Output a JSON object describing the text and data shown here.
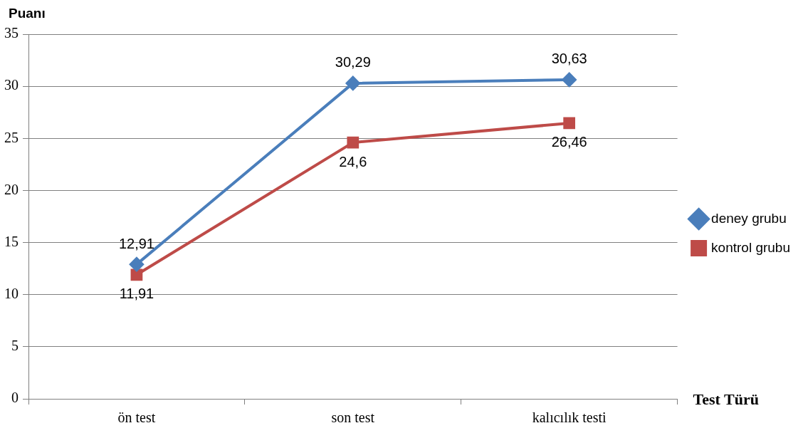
{
  "chart_data": {
    "type": "line",
    "xlabel": "Test Türü",
    "ylabel": "Puanı",
    "categories": [
      "ön test",
      "son test",
      "kalıcılık testi"
    ],
    "series": [
      {
        "name": "deney grubu",
        "color": "#4a7ebb",
        "marker": "diamond",
        "values": [
          12.91,
          30.29,
          30.63
        ],
        "value_labels": [
          "12,91",
          "30,29",
          "30,63"
        ]
      },
      {
        "name": "kontrol grubu",
        "color": "#be4b48",
        "marker": "square",
        "values": [
          11.91,
          24.6,
          26.46
        ],
        "value_labels": [
          "11,91",
          "24,6",
          "26,46"
        ]
      }
    ],
    "ylim": [
      0,
      35
    ],
    "yticks": [
      0,
      5,
      10,
      15,
      20,
      25,
      30,
      35
    ],
    "grid": "y",
    "legend": "right",
    "line_style": "solid"
  }
}
